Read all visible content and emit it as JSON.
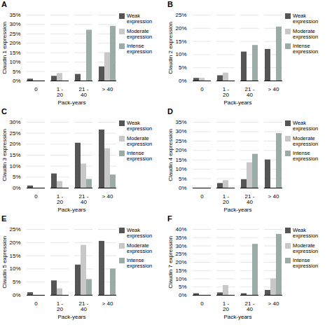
{
  "chart_data": [
    {
      "type": "bar",
      "title": "A",
      "xlabel": "Pack-years",
      "ylabel": "Claudin 1 expression",
      "categories": [
        "0",
        "1 -\n20",
        "21 -\n40",
        "> 40"
      ],
      "ylim": [
        0,
        35
      ],
      "yticks": [
        {
          "value": 0,
          "label": "0%"
        },
        {
          "value": 5,
          "label": "5%"
        },
        {
          "value": 10,
          "label": "10%"
        },
        {
          "value": 15,
          "label": "15%"
        },
        {
          "value": 20,
          "label": "20%"
        },
        {
          "value": 25,
          "label": "25%"
        },
        {
          "value": 30,
          "label": "30%"
        },
        {
          "value": 35,
          "label": "35%"
        }
      ],
      "grid": true,
      "legend": "right",
      "series": [
        {
          "name": "Weak expression",
          "color": "#555555",
          "values": [
            1,
            2.5,
            3.5,
            7.5
          ]
        },
        {
          "name": "Moderate\nexpression",
          "color": "#c8c8c8",
          "values": [
            0,
            4,
            0,
            15
          ]
        },
        {
          "name": "Intense expression",
          "color": "#9aaba8",
          "values": [
            0,
            0,
            27,
            29
          ]
        }
      ]
    },
    {
      "type": "bar",
      "title": "B",
      "xlabel": "Pack-years",
      "ylabel": "Claudin 2 expression",
      "categories": [
        "0",
        "1 -\n20",
        "21 -\n40",
        "> 40"
      ],
      "ylim": [
        0,
        25
      ],
      "yticks": [
        {
          "value": 0,
          "label": "0%"
        },
        {
          "value": 5,
          "label": "5%"
        },
        {
          "value": 10,
          "label": "10%"
        },
        {
          "value": 15,
          "label": "15%"
        },
        {
          "value": 20,
          "label": "20%"
        },
        {
          "value": 25,
          "label": "25%"
        }
      ],
      "grid": true,
      "legend": "right",
      "series": [
        {
          "name": "Weak expression",
          "color": "#555555",
          "values": [
            1,
            2,
            11,
            12
          ]
        },
        {
          "name": "Moderate\nexpression",
          "color": "#c8c8c8",
          "values": [
            1,
            3,
            0,
            0
          ]
        },
        {
          "name": "Intense expression",
          "color": "#9aaba8",
          "values": [
            0,
            0,
            13.5,
            20.5
          ]
        }
      ]
    },
    {
      "type": "bar",
      "title": "C",
      "xlabel": "Pack-years",
      "ylabel": "Claudin 3 expression",
      "categories": [
        "0",
        "1 -\n20",
        "21 -\n40",
        "> 40"
      ],
      "ylim": [
        0,
        30
      ],
      "yticks": [
        {
          "value": 0,
          "label": "0%"
        },
        {
          "value": 5,
          "label": "5%"
        },
        {
          "value": 10,
          "label": "10%"
        },
        {
          "value": 15,
          "label": "15%"
        },
        {
          "value": 20,
          "label": "20%"
        },
        {
          "value": 25,
          "label": "25%"
        },
        {
          "value": 30,
          "label": "30%"
        }
      ],
      "grid": true,
      "legend": "right",
      "series": [
        {
          "name": "Weak expression",
          "color": "#555555",
          "values": [
            1,
            6.5,
            20.5,
            26.5
          ]
        },
        {
          "name": "Moderate\nexpression",
          "color": "#c8c8c8",
          "values": [
            0,
            3,
            11,
            18
          ]
        },
        {
          "name": "Intense expression",
          "color": "#9aaba8",
          "values": [
            0,
            0,
            4,
            6
          ]
        }
      ]
    },
    {
      "type": "bar",
      "title": "D",
      "xlabel": "Pack-years",
      "ylabel": "Claudin 4 expression",
      "categories": [
        "0",
        "1 -\n20",
        "21 -\n40",
        "> 40"
      ],
      "ylim": [
        0,
        35
      ],
      "yticks": [
        {
          "value": 0,
          "label": "0%"
        },
        {
          "value": 5,
          "label": "5%"
        },
        {
          "value": 10,
          "label": "10%"
        },
        {
          "value": 15,
          "label": "15%"
        },
        {
          "value": 20,
          "label": "20%"
        },
        {
          "value": 25,
          "label": "25%"
        },
        {
          "value": 30,
          "label": "30%"
        },
        {
          "value": 35,
          "label": "35%"
        }
      ],
      "grid": true,
      "legend": "right",
      "series": [
        {
          "name": "Weak expression",
          "color": "#555555",
          "values": [
            0,
            2.5,
            4.5,
            15
          ]
        },
        {
          "name": "Moderate\nexpression",
          "color": "#c8c8c8",
          "values": [
            0,
            4,
            13.5,
            0
          ]
        },
        {
          "name": "Intense expression",
          "color": "#9aaba8",
          "values": [
            0,
            0,
            18,
            29
          ]
        }
      ]
    },
    {
      "type": "bar",
      "title": "E",
      "xlabel": "Pack-years",
      "ylabel": "Claudin 5 expression",
      "categories": [
        "0",
        "1 -\n20",
        "21 -\n40",
        "> 40"
      ],
      "ylim": [
        0,
        25
      ],
      "yticks": [
        {
          "value": 0,
          "label": "0%"
        },
        {
          "value": 5,
          "label": "5%"
        },
        {
          "value": 10,
          "label": "10%"
        },
        {
          "value": 15,
          "label": "15%"
        },
        {
          "value": 20,
          "label": "20%"
        },
        {
          "value": 25,
          "label": "25%"
        }
      ],
      "grid": true,
      "legend": "right",
      "series": [
        {
          "name": "Weak expression",
          "color": "#555555",
          "values": [
            1,
            5.5,
            11.5,
            20.5
          ]
        },
        {
          "name": "Moderate\nexpression",
          "color": "#c8c8c8",
          "values": [
            0,
            2.5,
            19,
            0
          ]
        },
        {
          "name": "Intense expression",
          "color": "#9aaba8",
          "values": [
            0,
            0,
            6,
            10
          ]
        }
      ]
    },
    {
      "type": "bar",
      "title": "F",
      "xlabel": "Pack-years",
      "ylabel": "Claudin 7 expression",
      "categories": [
        "0",
        "1 -\n20",
        "21 -\n40",
        "> 40"
      ],
      "ylim": [
        0,
        40
      ],
      "yticks": [
        {
          "value": 0,
          "label": "0%"
        },
        {
          "value": 5,
          "label": "5%"
        },
        {
          "value": 10,
          "label": "10%"
        },
        {
          "value": 15,
          "label": "15%"
        },
        {
          "value": 20,
          "label": "20%"
        },
        {
          "value": 25,
          "label": "25%"
        },
        {
          "value": 30,
          "label": "30%"
        },
        {
          "value": 35,
          "label": "35%"
        },
        {
          "value": 40,
          "label": "40%"
        }
      ],
      "grid": true,
      "legend": "right",
      "series": [
        {
          "name": "Weak expression",
          "color": "#555555",
          "values": [
            1,
            1.5,
            1,
            3
          ]
        },
        {
          "name": "Moderate\nexpression",
          "color": "#c8c8c8",
          "values": [
            0,
            6,
            0,
            10
          ]
        },
        {
          "name": "Intense expression",
          "color": "#9aaba8",
          "values": [
            0,
            0,
            31,
            37
          ]
        }
      ]
    }
  ]
}
